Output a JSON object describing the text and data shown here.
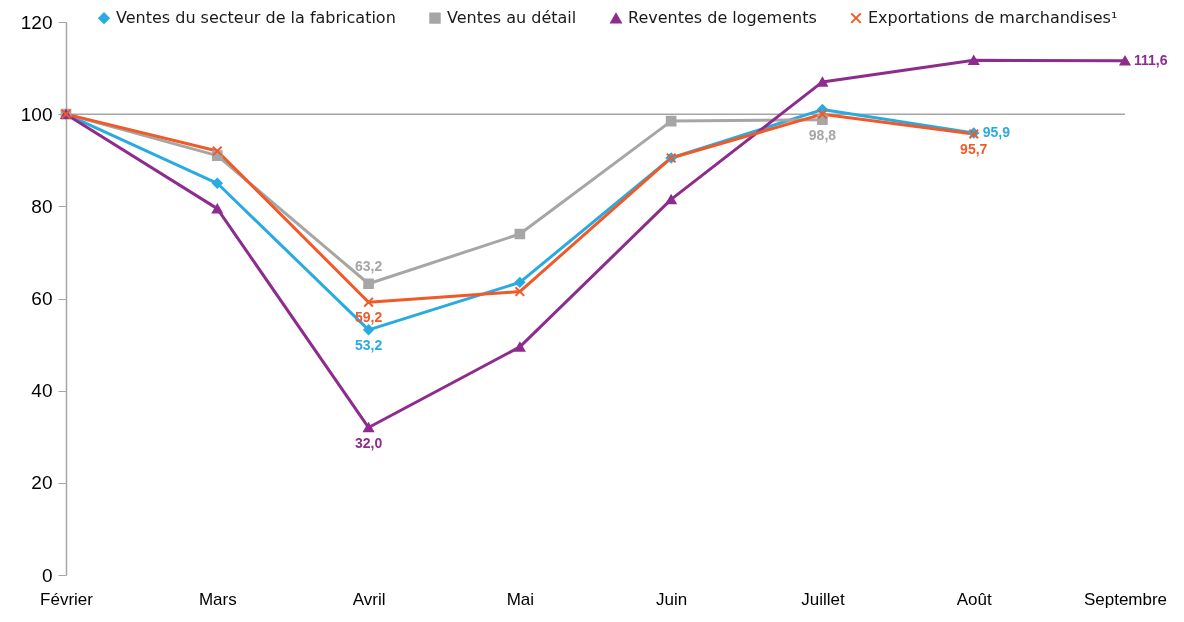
{
  "chart_data": {
    "type": "line",
    "categories": [
      "Février",
      "Mars",
      "Avril",
      "Mai",
      "Juin",
      "Juillet",
      "Août",
      "Septembre"
    ],
    "ylim": [
      0,
      120
    ],
    "yticks": [
      0,
      20,
      40,
      60,
      80,
      100,
      120
    ],
    "legend": "top",
    "line_style": "solid",
    "ref_lines": [
      {
        "axis": "y",
        "value": 100,
        "color": "#a6a6a6"
      }
    ],
    "series": [
      {
        "name": "Ventes du secteur de la fabrication",
        "color": "#29abe2",
        "marker": "diamond",
        "values": [
          100,
          85,
          53.2,
          63.5,
          90.5,
          101,
          95.9,
          null
        ],
        "value_labels": [
          null,
          null,
          "53,2",
          null,
          null,
          null,
          "95,9",
          null
        ]
      },
      {
        "name": "Ventes au détail",
        "color": "#a6a6a6",
        "marker": "square",
        "values": [
          100,
          91,
          63.2,
          74,
          98.5,
          98.8,
          null,
          null
        ],
        "value_labels": [
          null,
          null,
          "63,2",
          null,
          null,
          "98,8",
          null,
          null
        ]
      },
      {
        "name": "Reventes de logements",
        "color": "#8e2c8e",
        "marker": "triangle",
        "values": [
          100,
          79.5,
          32.0,
          49.5,
          81.5,
          107,
          111.7,
          111.6
        ],
        "value_labels": [
          null,
          null,
          "32,0",
          null,
          null,
          null,
          null,
          "111,6"
        ]
      },
      {
        "name": "Exportations de marchandises¹",
        "color": "#ef5a28",
        "marker": "cross",
        "values": [
          100,
          92,
          59.2,
          61.5,
          90.5,
          100,
          95.7,
          null
        ],
        "value_labels": [
          null,
          null,
          "59,2",
          null,
          null,
          null,
          "95,7",
          null
        ]
      }
    ]
  }
}
